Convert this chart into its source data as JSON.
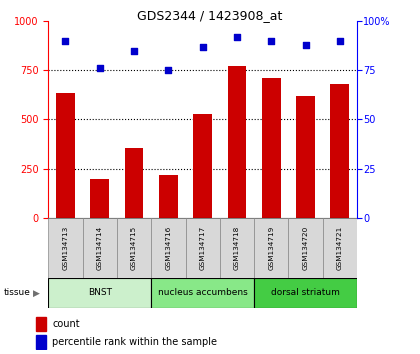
{
  "title": "GDS2344 / 1423908_at",
  "samples": [
    "GSM134713",
    "GSM134714",
    "GSM134715",
    "GSM134716",
    "GSM134717",
    "GSM134718",
    "GSM134719",
    "GSM134720",
    "GSM134721"
  ],
  "counts": [
    635,
    195,
    355,
    215,
    530,
    770,
    710,
    620,
    680
  ],
  "percentiles": [
    90,
    76,
    85,
    75,
    87,
    92,
    90,
    88,
    90
  ],
  "groups": [
    {
      "label": "BNST",
      "start": 0,
      "end": 3,
      "color": "#ccf0cc"
    },
    {
      "label": "nucleus accumbens",
      "start": 3,
      "end": 6,
      "color": "#88e888"
    },
    {
      "label": "dorsal striatum",
      "start": 6,
      "end": 9,
      "color": "#44cc44"
    }
  ],
  "bar_color": "#cc0000",
  "dot_color": "#0000cc",
  "ylim_left": [
    0,
    1000
  ],
  "ylim_right": [
    0,
    100
  ],
  "yticks_left": [
    0,
    250,
    500,
    750,
    1000
  ],
  "yticks_right": [
    0,
    25,
    50,
    75,
    100
  ],
  "background_color": "#ffffff",
  "tissue_label": "tissue",
  "legend_count_label": "count",
  "legend_pct_label": "percentile rank within the sample"
}
